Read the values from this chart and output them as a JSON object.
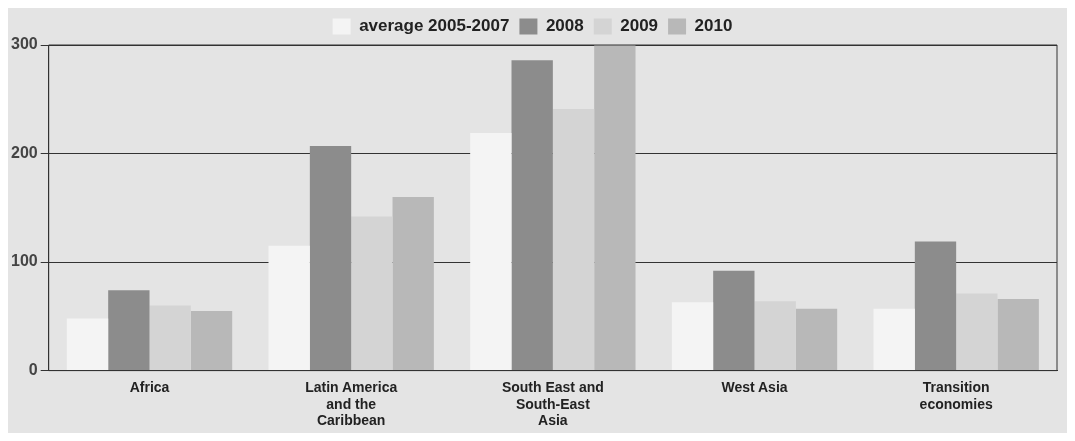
{
  "chart_data": {
    "type": "bar",
    "categories": [
      "Africa",
      "Latin America and the Caribbean",
      "South East and South-East Asia",
      "West Asia",
      "Transition economies"
    ],
    "series": [
      {
        "name": "average 2005-2007",
        "color": "#f4f4f4",
        "values": [
          48,
          115,
          219,
          63,
          57
        ]
      },
      {
        "name": "2008",
        "color": "#8c8c8c",
        "values": [
          74,
          207,
          286,
          92,
          119
        ]
      },
      {
        "name": "2009",
        "color": "#d4d4d4",
        "values": [
          60,
          142,
          241,
          64,
          71
        ]
      },
      {
        "name": "2010",
        "color": "#b8b8b8",
        "values": [
          55,
          160,
          300,
          57,
          66
        ]
      }
    ],
    "ylim": [
      0,
      300
    ],
    "yticks": [
      0,
      100,
      200,
      300
    ],
    "grid": "y",
    "legend": "top"
  }
}
